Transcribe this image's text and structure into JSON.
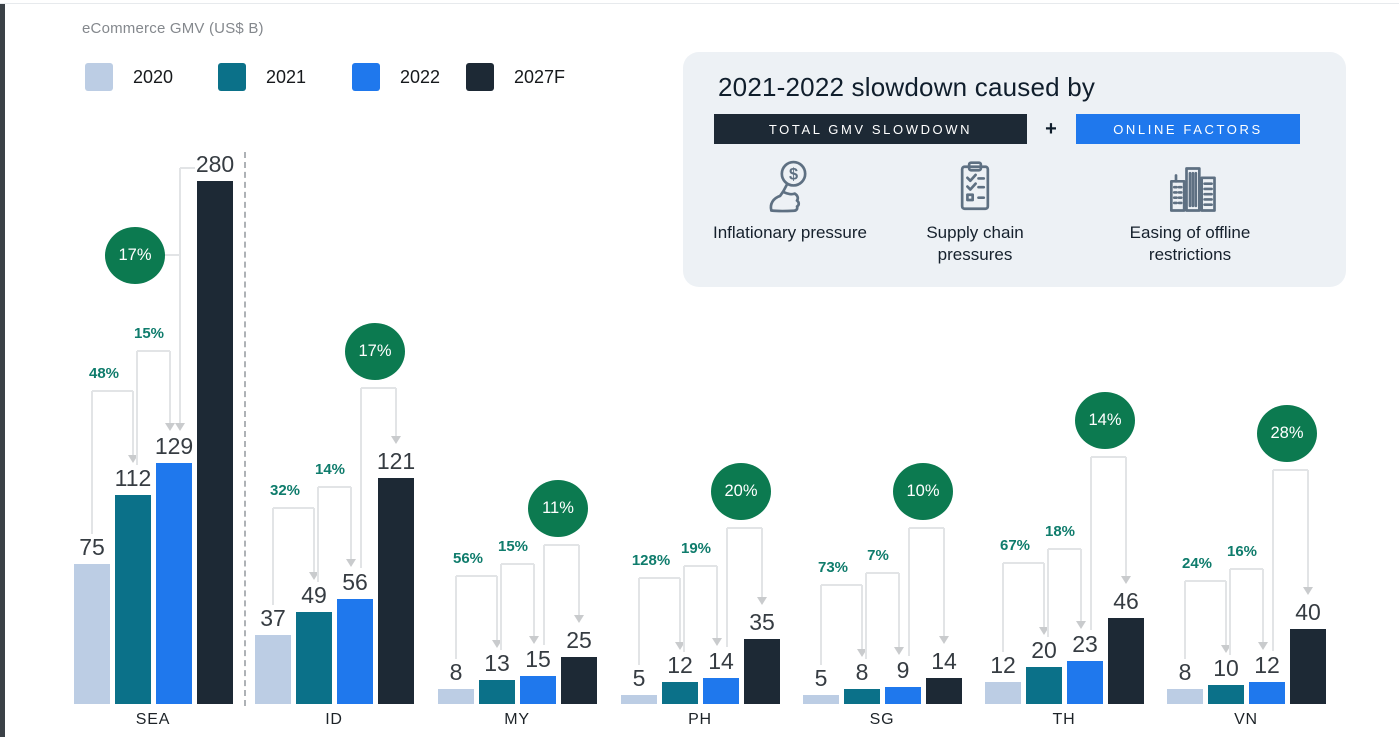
{
  "header": {
    "chart_title": "eCommerce GMV (US$ B)"
  },
  "legend": {
    "items": [
      {
        "label": "2020",
        "color": "#bccde4"
      },
      {
        "label": "2021",
        "color": "#0b7189"
      },
      {
        "label": "2022",
        "color": "#1f78ed"
      },
      {
        "label": "2027F",
        "color": "#1d2935"
      }
    ]
  },
  "callout": {
    "title": "2021-2022 slowdown caused by",
    "badge_total": {
      "label": "TOTAL GMV SLOWDOWN",
      "color": "#1d2935"
    },
    "plus": "+",
    "badge_online": {
      "label": "ONLINE FACTORS",
      "color": "#1f78ed"
    },
    "factors": [
      {
        "icon": "money-hand-icon",
        "label": "Inflationary pressure"
      },
      {
        "icon": "clipboard-checklist-icon",
        "label": "Supply chain pressures"
      },
      {
        "icon": "buildings-icon",
        "label": "Easing of offline restrictions"
      }
    ]
  },
  "chart_data": {
    "type": "bar",
    "title": "eCommerce GMV (US$ B)",
    "unit": "US$ B",
    "categories": [
      "SEA",
      "ID",
      "MY",
      "PH",
      "SG",
      "TH",
      "VN"
    ],
    "series": [
      {
        "name": "2020",
        "color": "#bccde4",
        "values": [
          75,
          37,
          8,
          5,
          5,
          12,
          8
        ]
      },
      {
        "name": "2021",
        "color": "#0b7189",
        "values": [
          112,
          49,
          13,
          12,
          8,
          20,
          10
        ]
      },
      {
        "name": "2022",
        "color": "#1f78ed",
        "values": [
          129,
          56,
          15,
          14,
          9,
          23,
          12
        ]
      },
      {
        "name": "2027F",
        "color": "#1d2935",
        "values": [
          280,
          121,
          25,
          35,
          14,
          46,
          40
        ]
      }
    ],
    "growth_2020_to_2021": [
      "48%",
      "32%",
      "56%",
      "128%",
      "73%",
      "67%",
      "24%"
    ],
    "growth_2021_to_2022": [
      "15%",
      "14%",
      "15%",
      "19%",
      "7%",
      "18%",
      "16%"
    ],
    "cagr_2022_to_2027": [
      "17%",
      "17%",
      "11%",
      "20%",
      "10%",
      "14%",
      "28%"
    ],
    "growth_label_color": "#0f7c6c",
    "cagr_badge_color": "#0c7a50",
    "legend_position": "top-left",
    "grid": false,
    "divider_after_category": "SEA"
  }
}
